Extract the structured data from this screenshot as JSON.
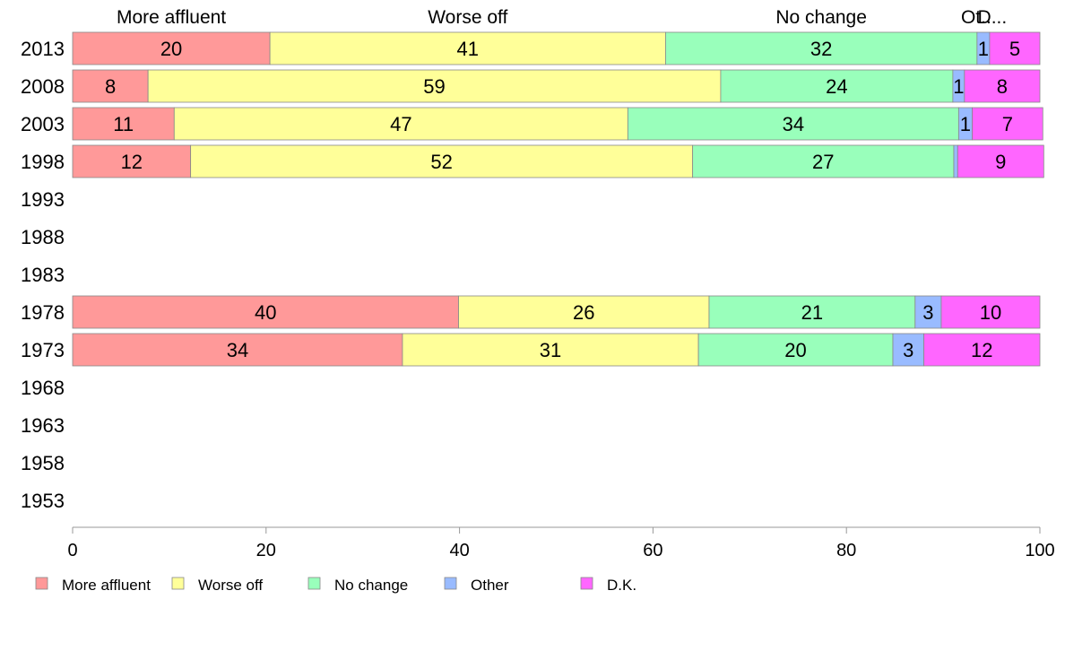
{
  "chart_data": {
    "type": "bar",
    "orientation": "horizontal",
    "stacked": true,
    "categories": [
      "2013",
      "2008",
      "2003",
      "1998",
      "1993",
      "1988",
      "1983",
      "1978",
      "1973",
      "1968",
      "1963",
      "1958",
      "1953"
    ],
    "series": [
      {
        "name": "More affluent",
        "color": "#ff9999",
        "values": [
          20.4,
          7.8,
          10.5,
          12.2,
          null,
          null,
          null,
          39.9,
          34.1,
          null,
          null,
          null,
          null
        ]
      },
      {
        "name": "Worse off",
        "color": "#ffff99",
        "values": [
          40.9,
          59.2,
          46.9,
          51.9,
          null,
          null,
          null,
          25.9,
          30.6,
          null,
          null,
          null,
          null
        ]
      },
      {
        "name": "No change",
        "color": "#99ffbb",
        "values": [
          32.2,
          24.0,
          34.2,
          27.0,
          null,
          null,
          null,
          21.3,
          20.1,
          null,
          null,
          null,
          null
        ]
      },
      {
        "name": "Other",
        "color": "#99bbff",
        "values": [
          1.3,
          1.2,
          1.4,
          0.4,
          null,
          null,
          null,
          2.7,
          3.2,
          null,
          null,
          null,
          null
        ]
      },
      {
        "name": "D.K.",
        "color": "#ff66ff",
        "values": [
          5.2,
          7.8,
          7.3,
          8.9,
          null,
          null,
          null,
          10.2,
          12.0,
          null,
          null,
          null,
          null
        ]
      }
    ],
    "top_labels": [
      "More affluent",
      "Worse off",
      "No change",
      "Ot..",
      "D..."
    ],
    "xlim": [
      0,
      100
    ],
    "xticks": [
      0,
      20,
      40,
      60,
      80,
      100
    ],
    "grid": false,
    "legend_position": "bottom",
    "title": "",
    "xlabel": "",
    "ylabel": ""
  }
}
